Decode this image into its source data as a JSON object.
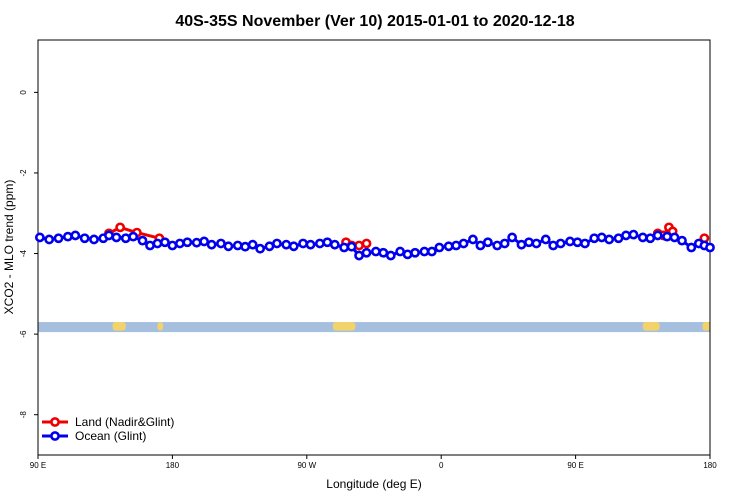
{
  "chart_data": {
    "type": "line",
    "title": "40S-35S November (Ver 10)   2015-01-01 to 2020-12-18",
    "xlabel": "Longitude (deg E)",
    "ylabel": "XCO2 - MLO trend (ppm)",
    "xlim": [
      90,
      450
    ],
    "ylim": [
      -9,
      1.3
    ],
    "x_ticks": [
      90,
      162,
      234,
      306,
      378,
      450
    ],
    "x_tick_labels": [
      "90 E",
      "180",
      "90 W",
      "0",
      "90 E",
      "180"
    ],
    "y_ticks": [
      0,
      -2,
      -4,
      -6,
      -8
    ],
    "y_tick_labels": [
      "0",
      "-2",
      "-4",
      "-6",
      "-8"
    ],
    "grid": false,
    "legend_position": "bottom-left",
    "land_band": {
      "y_range": [
        -5.95,
        -5.7
      ],
      "color": "#a7bfdf",
      "land_color": "#f2d36b",
      "land_segments": [
        [
          130,
          137
        ],
        [
          154,
          157
        ],
        [
          248,
          260
        ],
        [
          414,
          423
        ],
        [
          446,
          450
        ]
      ]
    },
    "series": [
      {
        "name": "Land (Nadir&Glint)",
        "color": "#ee0000",
        "segments": [
          [
            [
              128,
              -3.5
            ],
            [
              134,
              -3.35
            ],
            [
              143,
              -3.48
            ],
            [
              155,
              -3.62
            ]
          ],
          [
            [
              255,
              -3.72
            ],
            [
              258,
              -3.8
            ],
            [
              262,
              -3.8
            ],
            [
              266,
              -3.75
            ]
          ],
          [
            [
              422,
              -3.5
            ],
            [
              425,
              -3.55
            ],
            [
              428,
              -3.35
            ],
            [
              430,
              -3.45
            ]
          ],
          [
            [
              447,
              -3.62
            ]
          ]
        ]
      },
      {
        "name": "Ocean (Glint)",
        "color": "#0000ee",
        "values": [
          [
            91,
            -3.6
          ],
          [
            96,
            -3.65
          ],
          [
            101,
            -3.62
          ],
          [
            106,
            -3.58
          ],
          [
            110,
            -3.55
          ],
          [
            115,
            -3.62
          ],
          [
            120,
            -3.65
          ],
          [
            125,
            -3.62
          ],
          [
            128,
            -3.55
          ],
          [
            132,
            -3.6
          ],
          [
            137,
            -3.62
          ],
          [
            141,
            -3.58
          ],
          [
            146,
            -3.68
          ],
          [
            150,
            -3.8
          ],
          [
            154,
            -3.75
          ],
          [
            158,
            -3.72
          ],
          [
            162,
            -3.8
          ],
          [
            166,
            -3.75
          ],
          [
            170,
            -3.72
          ],
          [
            175,
            -3.73
          ],
          [
            179,
            -3.7
          ],
          [
            183,
            -3.78
          ],
          [
            188,
            -3.75
          ],
          [
            192,
            -3.82
          ],
          [
            197,
            -3.8
          ],
          [
            201,
            -3.83
          ],
          [
            205,
            -3.78
          ],
          [
            209,
            -3.88
          ],
          [
            214,
            -3.82
          ],
          [
            218,
            -3.75
          ],
          [
            223,
            -3.78
          ],
          [
            227,
            -3.82
          ],
          [
            232,
            -3.75
          ],
          [
            236,
            -3.78
          ],
          [
            241,
            -3.75
          ],
          [
            245,
            -3.72
          ],
          [
            249,
            -3.78
          ],
          [
            254,
            -3.85
          ],
          [
            258,
            -3.83
          ],
          [
            262,
            -4.05
          ],
          [
            266,
            -3.98
          ],
          [
            271,
            -3.95
          ],
          [
            275,
            -3.98
          ],
          [
            279,
            -4.05
          ],
          [
            284,
            -3.95
          ],
          [
            288,
            -4.02
          ],
          [
            292,
            -3.98
          ],
          [
            297,
            -3.95
          ],
          [
            301,
            -3.95
          ],
          [
            305,
            -3.85
          ],
          [
            310,
            -3.82
          ],
          [
            314,
            -3.8
          ],
          [
            318,
            -3.75
          ],
          [
            323,
            -3.65
          ],
          [
            327,
            -3.8
          ],
          [
            331,
            -3.72
          ],
          [
            336,
            -3.8
          ],
          [
            340,
            -3.75
          ],
          [
            344,
            -3.6
          ],
          [
            349,
            -3.78
          ],
          [
            353,
            -3.72
          ],
          [
            357,
            -3.75
          ],
          [
            362,
            -3.65
          ],
          [
            366,
            -3.8
          ],
          [
            370,
            -3.75
          ],
          [
            375,
            -3.7
          ],
          [
            379,
            -3.72
          ],
          [
            383,
            -3.75
          ],
          [
            388,
            -3.62
          ],
          [
            392,
            -3.6
          ],
          [
            396,
            -3.65
          ],
          [
            401,
            -3.62
          ],
          [
            405,
            -3.55
          ],
          [
            409,
            -3.53
          ],
          [
            414,
            -3.6
          ],
          [
            418,
            -3.62
          ],
          [
            422,
            -3.55
          ],
          [
            427,
            -3.58
          ],
          [
            431,
            -3.6
          ],
          [
            435,
            -3.68
          ],
          [
            440,
            -3.85
          ],
          [
            444,
            -3.75
          ],
          [
            447,
            -3.8
          ],
          [
            450,
            -3.85
          ]
        ]
      }
    ]
  }
}
